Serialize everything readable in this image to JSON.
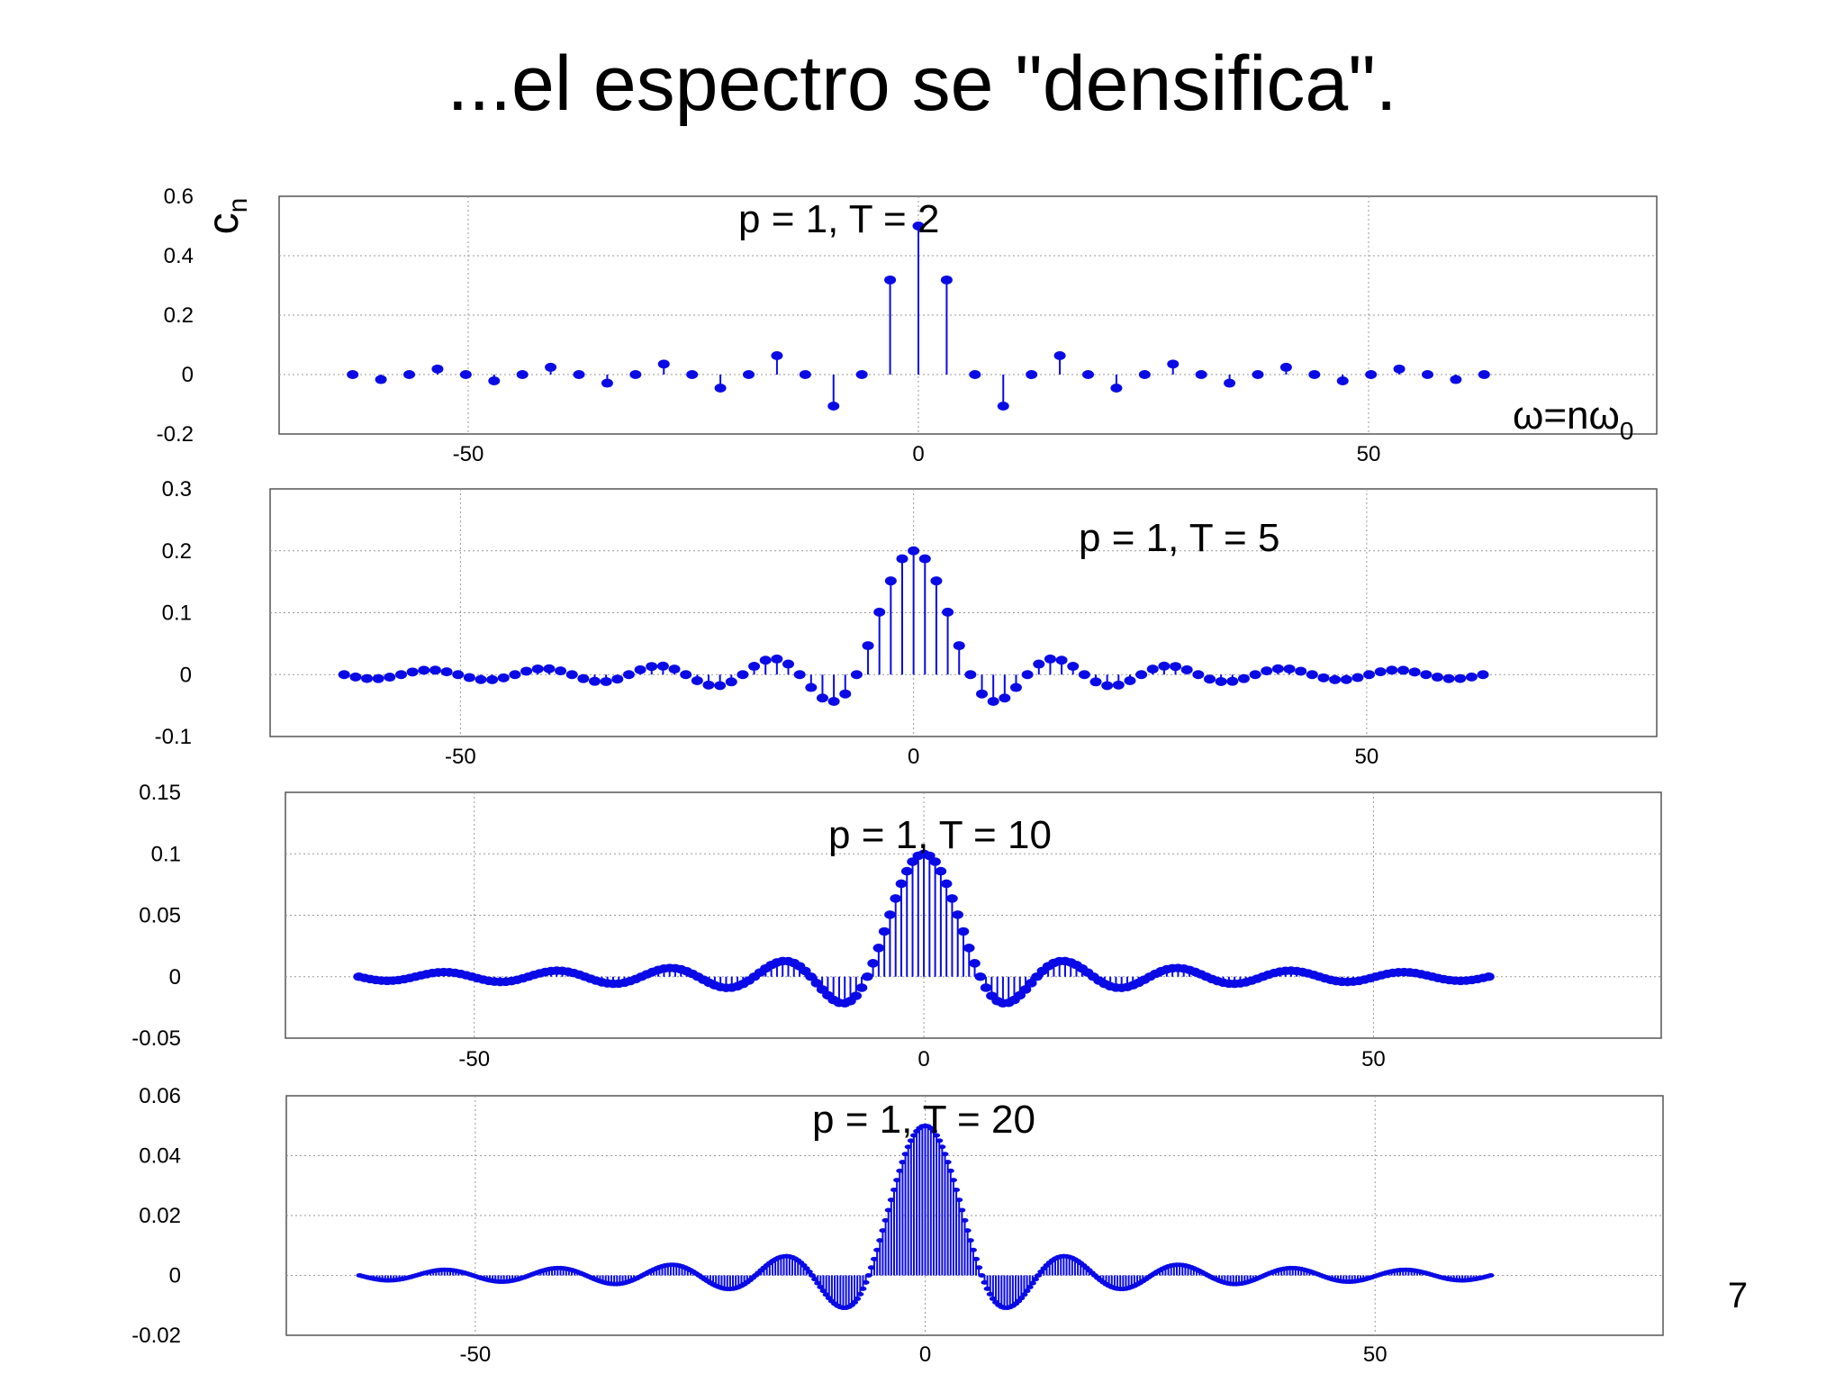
{
  "slide": {
    "title": "...el espectro se \"densifica\".",
    "page_number": "7"
  },
  "colors": {
    "stem": "#0a0ae6",
    "grid": "#9a9a9a",
    "frame": "#555555"
  },
  "chart_data": [
    {
      "type": "stem",
      "annotation": "p = 1, T = 2",
      "ylabel": "c",
      "ylabel_sub": "n",
      "xlabel": "ω=nω",
      "xlabel_sub": "0",
      "p": 1,
      "T": 2,
      "n_range": [
        -20,
        20
      ],
      "omega_step": 3.1416,
      "xlim": [
        -71,
        82
      ],
      "ylim": [
        -0.2,
        0.6
      ],
      "xticks": [
        -50,
        0,
        50
      ],
      "xtick_labels": [
        "-50",
        "0",
        "50"
      ],
      "yticks": [
        -0.2,
        0,
        0.2,
        0.4,
        0.6
      ],
      "ytick_labels": [
        "-0.2",
        "0",
        "0.2",
        "0.4",
        "0.6"
      ],
      "grid": true
    },
    {
      "type": "stem",
      "annotation": "p = 1, T = 5",
      "ylabel": "",
      "xlabel": "",
      "p": 1,
      "T": 5,
      "n_range": [
        -50,
        50
      ],
      "omega_step": 1.2566,
      "xlim": [
        -71,
        82
      ],
      "ylim": [
        -0.1,
        0.3
      ],
      "xticks": [
        -50,
        0,
        50
      ],
      "xtick_labels": [
        "-50",
        "0",
        "50"
      ],
      "yticks": [
        -0.1,
        0,
        0.1,
        0.2,
        0.3
      ],
      "ytick_labels": [
        "-0.1",
        "0",
        "0.1",
        "0.2",
        "0.3"
      ],
      "grid": true
    },
    {
      "type": "stem",
      "annotation": "p = 1, T = 10",
      "ylabel": "",
      "xlabel": "",
      "p": 1,
      "T": 10,
      "n_range": [
        -100,
        100
      ],
      "omega_step": 0.6283,
      "xlim": [
        -71,
        82
      ],
      "ylim": [
        -0.05,
        0.15
      ],
      "xticks": [
        -50,
        0,
        50
      ],
      "xtick_labels": [
        "-50",
        "0",
        "50"
      ],
      "yticks": [
        -0.05,
        0,
        0.05,
        0.1,
        0.15
      ],
      "ytick_labels": [
        "-0.05",
        "0",
        "0.05",
        "0.1",
        "0.15"
      ],
      "grid": true
    },
    {
      "type": "stem",
      "annotation": "p = 1, T = 20",
      "ylabel": "",
      "xlabel": "",
      "p": 1,
      "T": 20,
      "n_range": [
        -200,
        200
      ],
      "omega_step": 0.3142,
      "xlim": [
        -71,
        82
      ],
      "ylim": [
        -0.02,
        0.06
      ],
      "xticks": [
        -50,
        0,
        50
      ],
      "xtick_labels": [
        "-50",
        "0",
        "50"
      ],
      "yticks": [
        -0.02,
        0,
        0.02,
        0.04,
        0.06
      ],
      "ytick_labels": [
        "-0.02",
        "0",
        "0.02",
        "0.04",
        "0.06"
      ],
      "grid": true
    }
  ]
}
